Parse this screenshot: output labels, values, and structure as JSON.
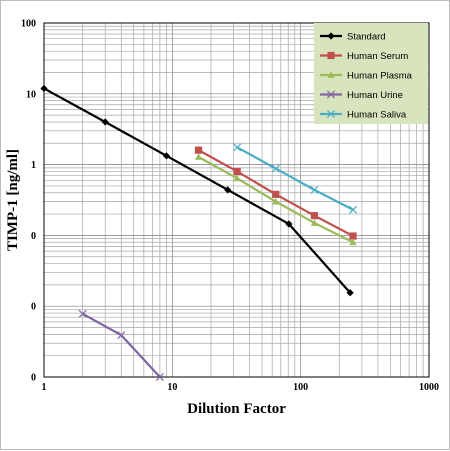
{
  "chart_data": {
    "type": "line",
    "title": "",
    "xlabel": "Dilution Factor",
    "ylabel": "TIMP-1 [ng/ml]",
    "x_scale": "log",
    "y_scale": "log",
    "xlim": [
      1,
      1000
    ],
    "ylim": [
      0.001,
      100
    ],
    "grid": true,
    "legend_position": "top-right",
    "x_tick_labels": [
      "1",
      "10",
      "100",
      "1000"
    ],
    "x_tick_values": [
      1,
      10,
      100,
      1000
    ],
    "y_tick_labels": [
      "100",
      "10",
      "1",
      "0",
      "0",
      "0"
    ],
    "y_tick_values": [
      100,
      10,
      1,
      0.1,
      0.01,
      0.001
    ],
    "series": [
      {
        "name": "Standard",
        "color": "#000000",
        "marker": "diamond",
        "x": [
          1,
          3,
          9,
          27,
          81,
          243
        ],
        "y": [
          11.9,
          4.0,
          1.33,
          0.44,
          0.145,
          0.0155
        ]
      },
      {
        "name": "Human Serum",
        "color": "#C0504D",
        "marker": "square",
        "x": [
          16,
          32,
          64,
          128,
          256
        ],
        "y": [
          1.6,
          0.8,
          0.38,
          0.19,
          0.098
        ]
      },
      {
        "name": "Human Plasma",
        "color": "#9BBB59",
        "marker": "triangle",
        "x": [
          16,
          32,
          64,
          128,
          256
        ],
        "y": [
          1.28,
          0.64,
          0.3,
          0.15,
          0.08
        ]
      },
      {
        "name": "Human Urine",
        "color": "#8064A2",
        "marker": "x",
        "x": [
          2,
          4,
          8
        ],
        "y": [
          0.0078,
          0.0039,
          0.001
        ]
      },
      {
        "name": "Human Saliva",
        "color": "#4BACC6",
        "marker": "x",
        "x": [
          32,
          64,
          128,
          256
        ],
        "y": [
          1.75,
          0.88,
          0.44,
          0.23
        ]
      }
    ]
  }
}
